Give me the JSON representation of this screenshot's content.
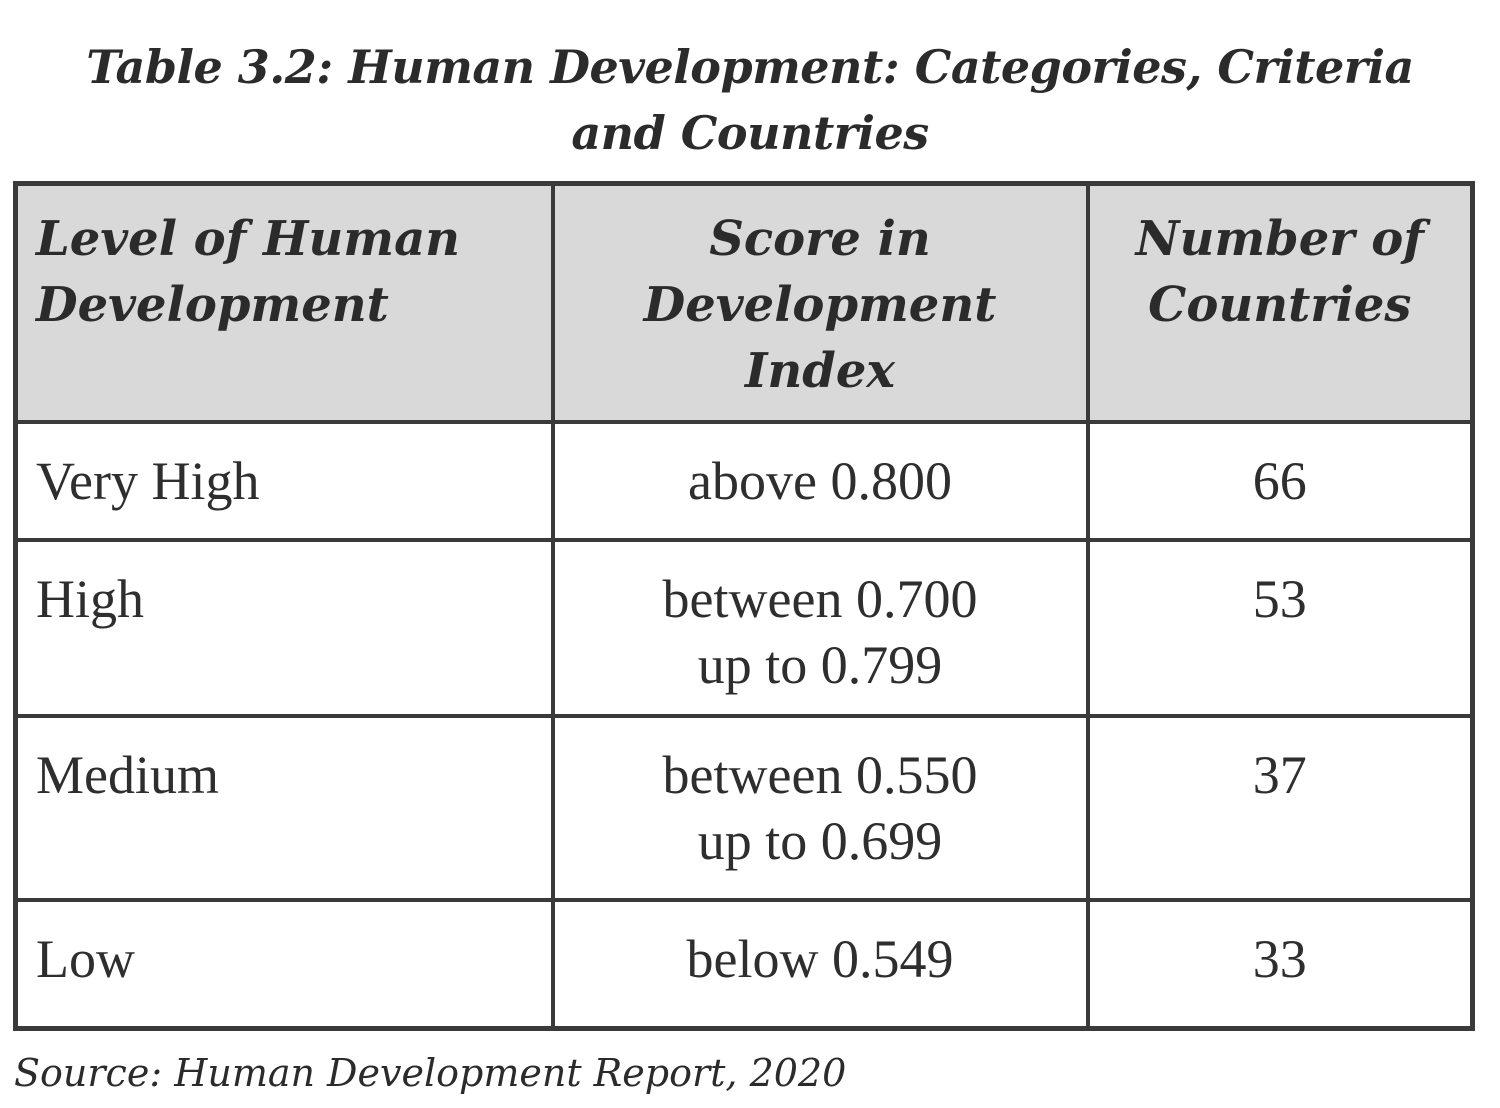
{
  "title": {
    "line1": "Table 3.2: Human Development: Categories, Criteria",
    "line2": "and Countries"
  },
  "table": {
    "headers": [
      [
        "Level of Human",
        "Development"
      ],
      [
        "Score in",
        "Development",
        "Index"
      ],
      [
        "Number of",
        "Countries"
      ]
    ],
    "rows": [
      {
        "level": "Very High",
        "score": [
          "above 0.800"
        ],
        "countries": "66"
      },
      {
        "level": "High",
        "score": [
          "between 0.700",
          "up to 0.799"
        ],
        "countries": "53"
      },
      {
        "level": "Medium",
        "score": [
          "between 0.550",
          "up to 0.699"
        ],
        "countries": "37"
      },
      {
        "level": "Low",
        "score": [
          "below 0.549"
        ],
        "countries": "33"
      }
    ]
  },
  "source": "Source: Human Development Report, 2020"
}
